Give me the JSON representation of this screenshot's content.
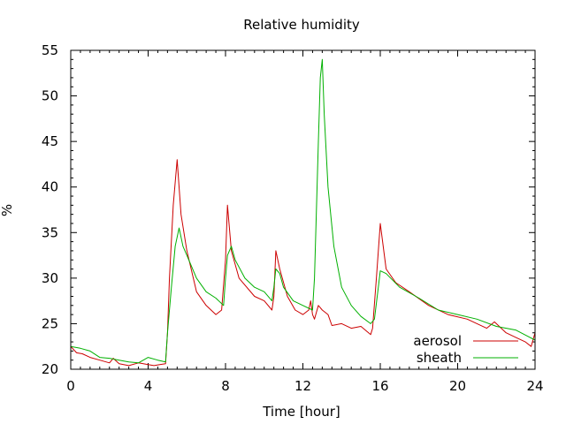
{
  "chart_data": {
    "type": "line",
    "title": "Relative humidity",
    "xlabel": "Time [hour]",
    "ylabel": "%",
    "xlim": [
      0,
      24
    ],
    "ylim": [
      20,
      55
    ],
    "xticks": [
      0,
      4,
      8,
      12,
      16,
      20,
      24
    ],
    "yticks": [
      20,
      25,
      30,
      35,
      40,
      45,
      50,
      55
    ],
    "grid": false,
    "legend": "bottom-right",
    "series": [
      {
        "name": "aerosol",
        "color": "#cc0000",
        "x": [
          0,
          0.3,
          0.6,
          1.0,
          1.5,
          2.0,
          2.2,
          2.5,
          3.0,
          3.5,
          4.0,
          4.3,
          4.6,
          4.9,
          5.0,
          5.1,
          5.3,
          5.5,
          5.7,
          6.0,
          6.5,
          7.0,
          7.5,
          7.8,
          8.0,
          8.1,
          8.3,
          8.7,
          9.5,
          10.0,
          10.4,
          10.5,
          10.6,
          10.8,
          11.2,
          11.6,
          12.0,
          12.3,
          12.4,
          12.5,
          12.6,
          12.8,
          13.0,
          13.3,
          13.5,
          14.0,
          14.5,
          15.0,
          15.5,
          15.6,
          15.8,
          16.0,
          16.3,
          16.8,
          17.5,
          18.5,
          19.5,
          20.5,
          21.5,
          21.9,
          22.5,
          23.0,
          23.5,
          23.8,
          24.0
        ],
        "y": [
          22.5,
          21.8,
          21.7,
          21.3,
          21.0,
          20.7,
          21.2,
          20.6,
          20.4,
          20.7,
          20.5,
          20.4,
          20.5,
          20.6,
          24.0,
          30.0,
          38.0,
          43.0,
          37.0,
          33.0,
          28.5,
          27.0,
          26.0,
          26.5,
          32.0,
          38.0,
          33.0,
          30.0,
          28.0,
          27.5,
          26.5,
          28.0,
          33.0,
          31.0,
          28.0,
          26.5,
          26.0,
          26.5,
          27.5,
          26.0,
          25.5,
          27.0,
          26.5,
          26.0,
          24.8,
          25.0,
          24.5,
          24.7,
          23.8,
          24.5,
          30.0,
          36.0,
          31.0,
          29.5,
          28.5,
          27.0,
          26.0,
          25.5,
          24.5,
          25.2,
          24.0,
          23.5,
          23.0,
          22.5,
          24.0
        ]
      },
      {
        "name": "sheath",
        "color": "#00b000",
        "x": [
          0,
          0.5,
          1.0,
          1.5,
          2.0,
          2.5,
          3.0,
          3.5,
          4.0,
          4.5,
          4.9,
          5.0,
          5.2,
          5.4,
          5.6,
          5.8,
          6.0,
          6.5,
          7.0,
          7.5,
          7.9,
          8.0,
          8.1,
          8.3,
          8.5,
          9.0,
          9.5,
          10.0,
          10.4,
          10.5,
          10.6,
          10.8,
          11.0,
          11.5,
          12.0,
          12.5,
          12.6,
          12.8,
          12.9,
          13.0,
          13.1,
          13.3,
          13.6,
          14.0,
          14.5,
          15.0,
          15.5,
          15.7,
          15.9,
          16.0,
          16.3,
          17.0,
          18.0,
          19.0,
          20.0,
          21.0,
          22.0,
          23.0,
          24.0
        ],
        "y": [
          22.5,
          22.3,
          22.0,
          21.3,
          21.2,
          21.0,
          20.8,
          20.7,
          21.3,
          21.0,
          20.8,
          24.0,
          29.0,
          33.5,
          35.5,
          33.5,
          32.5,
          30.0,
          28.5,
          27.8,
          27.0,
          30.0,
          32.5,
          33.5,
          32.0,
          30.0,
          29.0,
          28.5,
          27.5,
          29.0,
          31.0,
          30.5,
          29.0,
          27.5,
          27.0,
          26.5,
          30.0,
          45.0,
          52.0,
          54.0,
          48.0,
          40.0,
          33.5,
          29.0,
          27.0,
          25.8,
          25.0,
          25.5,
          29.0,
          30.8,
          30.5,
          29.0,
          27.8,
          26.5,
          26.0,
          25.5,
          24.7,
          24.3,
          23.2
        ]
      }
    ]
  }
}
